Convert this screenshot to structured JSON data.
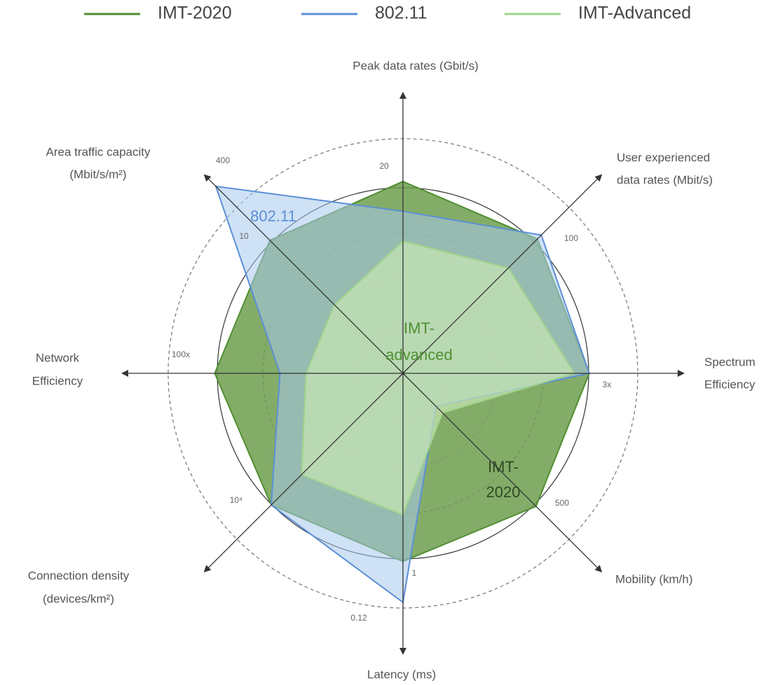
{
  "chart_data": {
    "type": "radar",
    "categories": [
      [
        "Peak data rates (Gbit/s)"
      ],
      [
        "User experienced",
        "data rates (Mbit/s)"
      ],
      [
        "Spectrum",
        "Efficiency"
      ],
      [
        "Mobility (km/h)"
      ],
      [
        "Latency (ms)"
      ],
      [
        "Connection  density",
        "(devices/km²)"
      ],
      [
        "Network",
        "Efficiency"
      ],
      [
        "Area traffic capacity",
        "(Mbit/s/m²)"
      ]
    ],
    "axis_ticks": [
      [
        "20"
      ],
      [
        "100"
      ],
      [
        "3x"
      ],
      [
        "500"
      ],
      [
        "1",
        "0.12"
      ],
      [
        "10⁴"
      ],
      [
        "100x"
      ],
      [
        "400",
        "10"
      ]
    ],
    "rlim": [
      0,
      1.26
    ],
    "series": [
      {
        "name": "IMT-2020",
        "color": "#4f8f32",
        "fill": "#6f9e4f",
        "values": [
          1.03,
          1.02,
          1.0,
          1.01,
          1.01,
          1.0,
          1.01,
          1.01
        ]
      },
      {
        "name": "802.11",
        "color": "#5b8fd6",
        "fill": "#a8c8ec",
        "values": [
          0.87,
          1.05,
          1.0,
          0.25,
          1.23,
          1.0,
          0.66,
          1.42
        ]
      },
      {
        "name": "IMT-Advanced",
        "color": "#9fd48a",
        "fill": "#c8e6b4",
        "values": [
          0.71,
          0.8,
          0.92,
          0.3,
          0.76,
          0.77,
          0.52,
          0.52
        ]
      }
    ],
    "annotations": [
      [
        "802.11"
      ],
      [
        "IMT-",
        "advanced"
      ],
      [
        "IMT-",
        "2020"
      ]
    ]
  }
}
